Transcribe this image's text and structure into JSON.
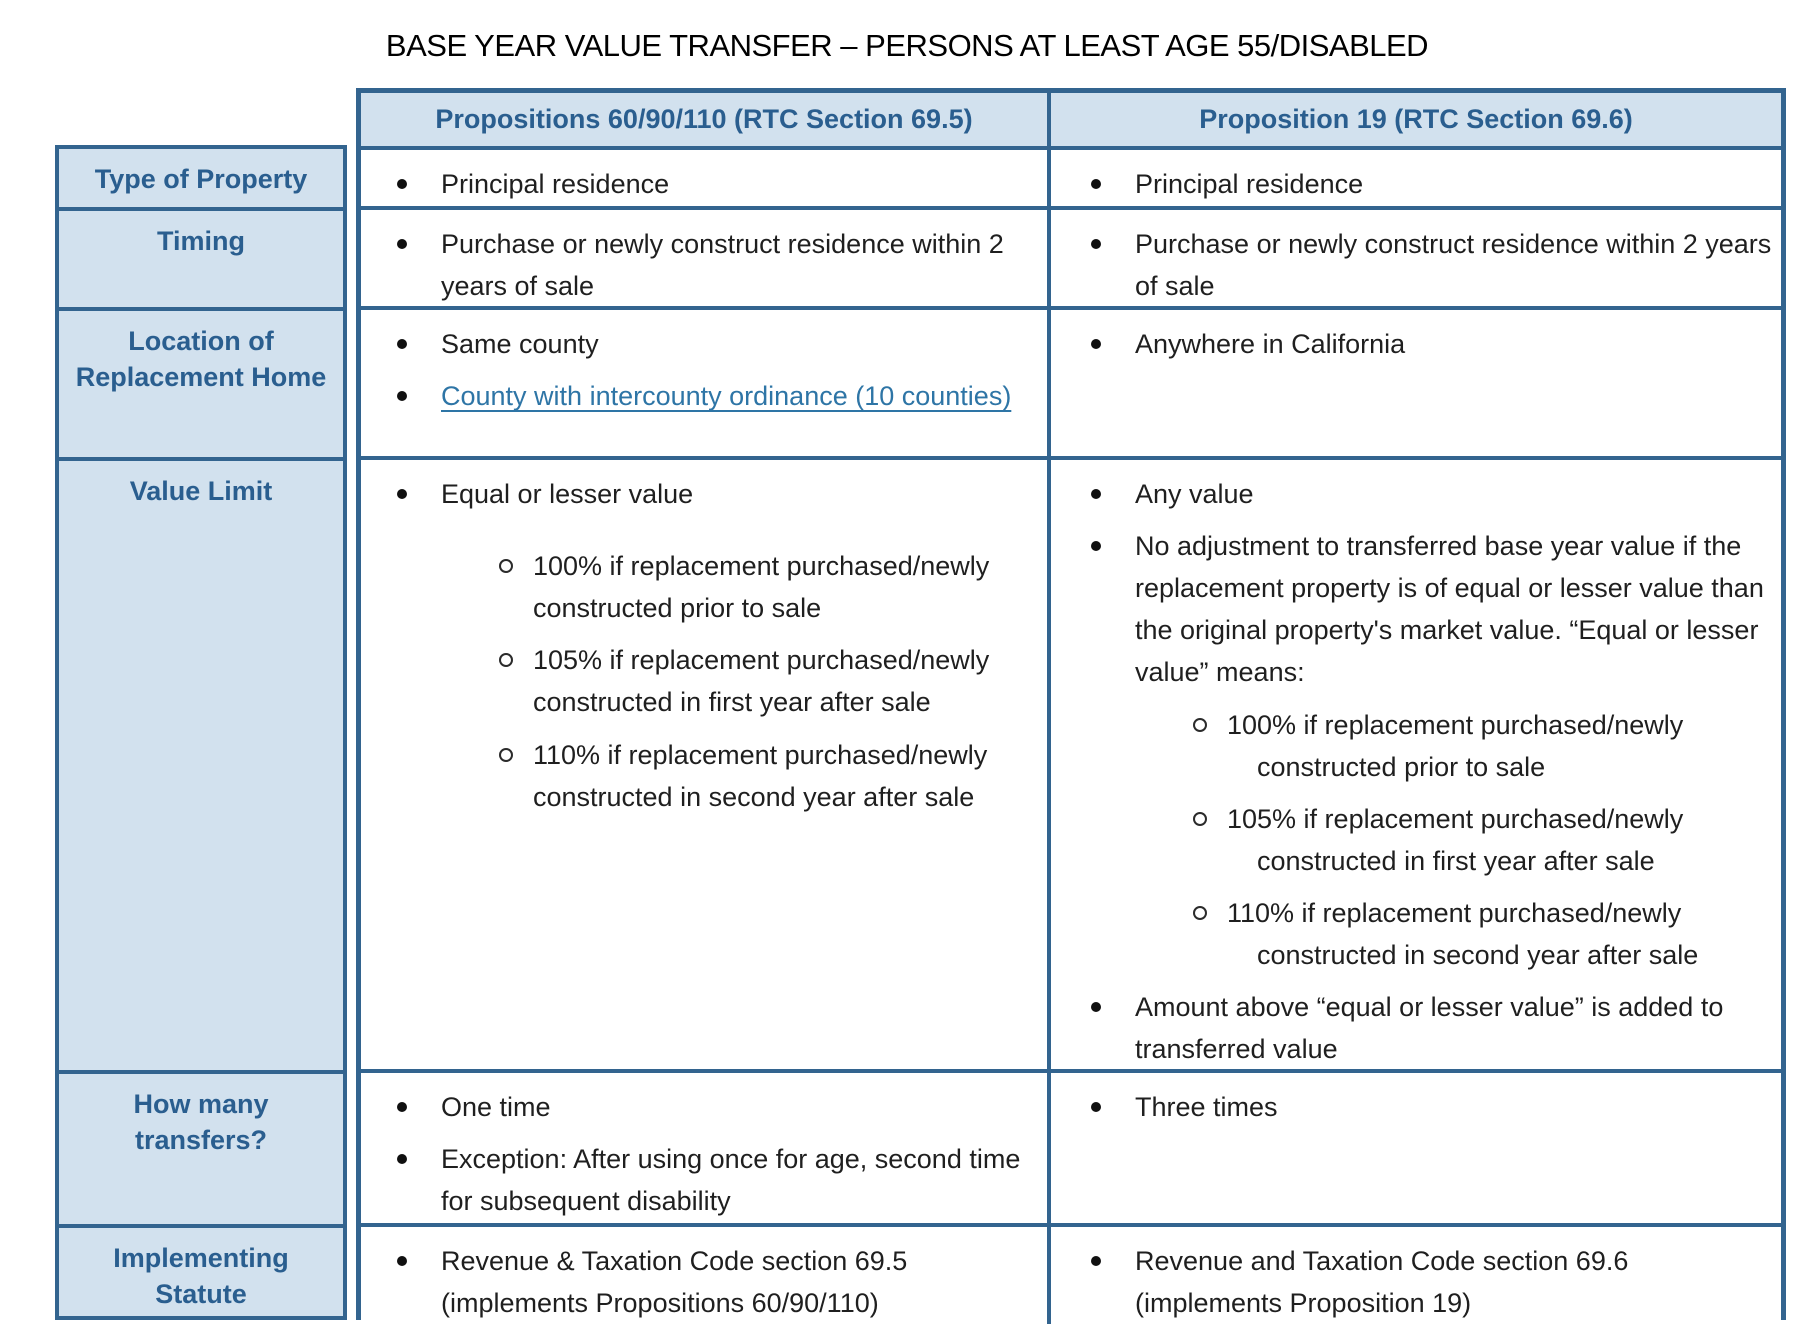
{
  "title": "BASE YEAR VALUE TRANSFER – PERSONS AT LEAST AGE 55/DISABLED",
  "colors": {
    "border": "#33648f",
    "header_bg": "#d2e1ee",
    "header_text": "#2a5e8f",
    "link": "#2e75a6"
  },
  "table": {
    "columns": [
      "Propositions 60/90/110 (RTC Section 69.5)",
      "Proposition 19 (RTC Section 69.6)"
    ],
    "rows": [
      {
        "label": "Type of Property",
        "col1": [
          {
            "type": "bullet",
            "text": "Principal residence"
          }
        ],
        "col2": [
          {
            "type": "bullet",
            "text": "Principal residence"
          }
        ]
      },
      {
        "label": "Timing",
        "col1": [
          {
            "type": "bullet",
            "text": "Purchase or newly construct residence within 2 years of sale"
          }
        ],
        "col2": [
          {
            "type": "bullet",
            "text": "Purchase or newly construct residence within 2 years of sale"
          }
        ]
      },
      {
        "label": "Location of Replacement Home",
        "col1": [
          {
            "type": "bullet",
            "text": "Same county"
          },
          {
            "type": "bullet",
            "text": "County with intercounty ordinance (10 counties)",
            "link": true
          }
        ],
        "col2": [
          {
            "type": "bullet",
            "text": "Anywhere in California"
          }
        ]
      },
      {
        "label": "Value Limit",
        "col1": [
          {
            "type": "bullet",
            "text": "Equal or lesser value"
          },
          {
            "type": "circle",
            "gapBefore": true,
            "text": "100% if replacement purchased/newly constructed prior to sale"
          },
          {
            "type": "circle",
            "text": "105% if replacement purchased/newly constructed in first year after sale"
          },
          {
            "type": "circle",
            "text": "110% if replacement purchased/newly constructed in second year after sale"
          }
        ],
        "col2": [
          {
            "type": "bullet",
            "text": "Any value"
          },
          {
            "type": "bullet",
            "text": "No adjustment to transferred base year value if the replacement property is of equal or lesser value than the original property's market value. “Equal or lesser value” means:"
          },
          {
            "type": "circle",
            "text": "100% if replacement purchased/newly constructed prior to sale"
          },
          {
            "type": "circle",
            "text": "105% if replacement purchased/newly constructed in first year after sale"
          },
          {
            "type": "circle",
            "text": "110% if replacement purchased/newly constructed in second year after sale"
          },
          {
            "type": "bullet",
            "text": "Amount above “equal or lesser value” is added to transferred value"
          }
        ]
      },
      {
        "label": "How many transfers?",
        "col1": [
          {
            "type": "bullet",
            "text": "One time"
          },
          {
            "type": "bullet",
            "text": "Exception:  After using once for age, second time for subsequent disability"
          }
        ],
        "col2": [
          {
            "type": "bullet",
            "text": "Three times"
          }
        ]
      },
      {
        "label": "Implementing Statute",
        "col1": [
          {
            "type": "bullet",
            "text": "Revenue & Taxation Code section 69.5 (implements Propositions 60/90/110)"
          }
        ],
        "col2": [
          {
            "type": "bullet",
            "text": "Revenue and Taxation Code section 69.6 (implements Proposition 19)"
          }
        ]
      }
    ]
  }
}
